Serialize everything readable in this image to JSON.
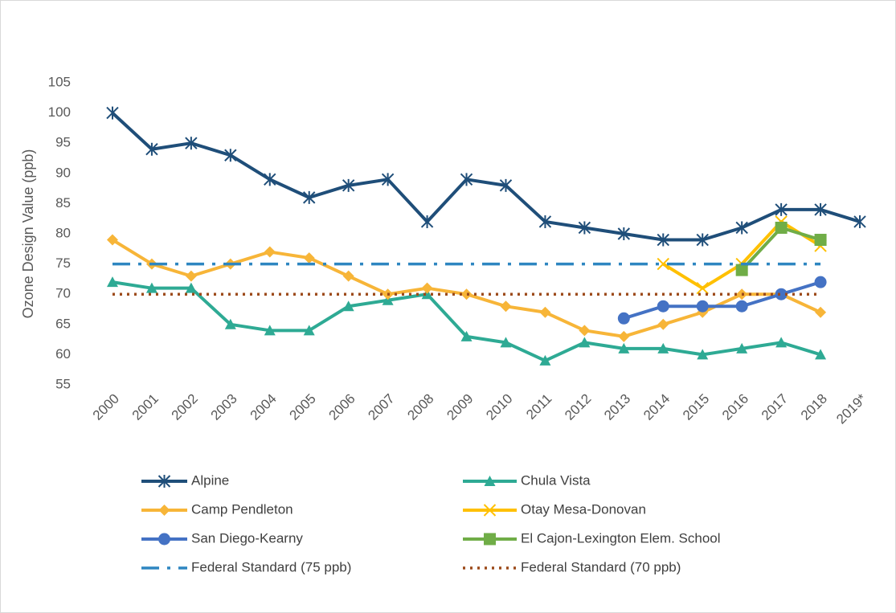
{
  "chart_data": {
    "type": "line",
    "y_label": "Ozone Design Value (ppb)",
    "categories": [
      "2000",
      "2001",
      "2002",
      "2003",
      "2004",
      "2005",
      "2006",
      "2007",
      "2008",
      "2009",
      "2010",
      "2011",
      "2012",
      "2013",
      "2014",
      "2015",
      "2016",
      "2017",
      "2018",
      "2019*"
    ],
    "ylim": [
      55,
      105
    ],
    "yticks": [
      55,
      60,
      65,
      70,
      75,
      80,
      85,
      90,
      95,
      100,
      105
    ],
    "grid": false,
    "series": [
      {
        "name": "Alpine",
        "color": "#1f4e79",
        "marker": "star",
        "dash": "solid",
        "values": [
          100,
          94,
          95,
          93,
          89,
          86,
          88,
          89,
          82,
          89,
          88,
          82,
          81,
          80,
          79,
          79,
          81,
          84,
          84,
          82
        ]
      },
      {
        "name": "Chula Vista",
        "color": "#2eaa94",
        "marker": "triangle",
        "dash": "solid",
        "values": [
          72,
          71,
          71,
          65,
          64,
          64,
          68,
          69,
          70,
          63,
          62,
          59,
          62,
          61,
          61,
          60,
          61,
          62,
          60,
          null
        ]
      },
      {
        "name": "Camp Pendleton",
        "color": "#f7b538",
        "marker": "diamond",
        "dash": "solid",
        "values": [
          79,
          75,
          73,
          75,
          77,
          76,
          73,
          70,
          71,
          70,
          68,
          67,
          64,
          63,
          65,
          67,
          70,
          70,
          67,
          null
        ]
      },
      {
        "name": "Otay Mesa-Donovan",
        "color": "#ffc000",
        "marker": "x",
        "dash": "solid",
        "values": [
          null,
          null,
          null,
          null,
          null,
          null,
          null,
          null,
          null,
          null,
          null,
          null,
          null,
          null,
          75,
          71,
          75,
          82,
          78,
          null
        ]
      },
      {
        "name": "San Diego-Kearny",
        "color": "#4472c4",
        "marker": "circle",
        "dash": "solid",
        "values": [
          null,
          null,
          null,
          null,
          null,
          null,
          null,
          null,
          null,
          null,
          null,
          null,
          null,
          66,
          68,
          68,
          68,
          70,
          72,
          null
        ]
      },
      {
        "name": "El Cajon-Lexington Elem. School",
        "color": "#70ad47",
        "marker": "square",
        "dash": "solid",
        "values": [
          null,
          null,
          null,
          null,
          null,
          null,
          null,
          null,
          null,
          null,
          null,
          null,
          null,
          null,
          null,
          null,
          74,
          81,
          79,
          null
        ]
      },
      {
        "name": "Federal Standard (75 ppb)",
        "color": "#2e86c1",
        "marker": "none",
        "dash": "dash-dot",
        "values": [
          75,
          75,
          75,
          75,
          75,
          75,
          75,
          75,
          75,
          75,
          75,
          75,
          75,
          75,
          75,
          75,
          75,
          75,
          75,
          null
        ]
      },
      {
        "name": "Federal Standard (70 ppb)",
        "color": "#9c4a1a",
        "marker": "none",
        "dash": "dot",
        "values": [
          70,
          70,
          70,
          70,
          70,
          70,
          70,
          70,
          70,
          70,
          70,
          70,
          70,
          70,
          70,
          70,
          70,
          70,
          70,
          null
        ]
      }
    ]
  }
}
